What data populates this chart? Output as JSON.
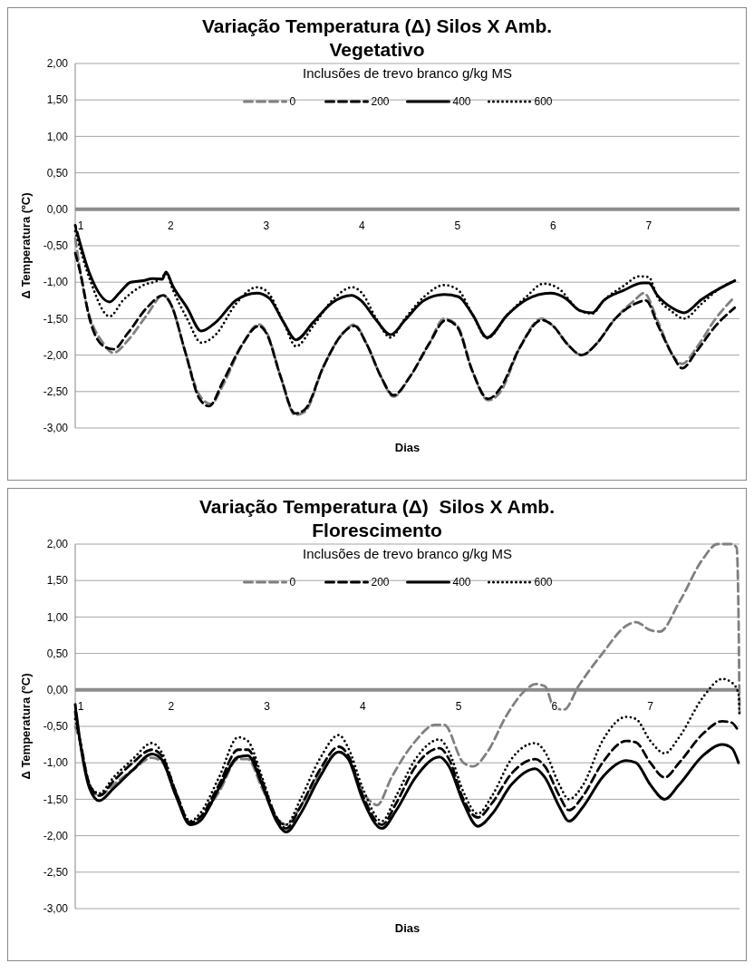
{
  "chart_data": [
    {
      "type": "line",
      "title": "Variação Temperatura (Δ) Silos X Amb.",
      "subtitle": "Vegetativo",
      "xlabel": "Dias",
      "ylabel": "Δ Temperatura (ºC)",
      "legend_title": "Inclusões de trevo branco g/kg MS",
      "legend": "top",
      "grid": "y",
      "xlim": [
        1,
        7.95
      ],
      "xticks": [
        1,
        2,
        3,
        4,
        5,
        6,
        7
      ],
      "ylim": [
        -3,
        2
      ],
      "yticks": [
        {
          "value": 2,
          "label": "2,00"
        },
        {
          "value": 1.5,
          "label": "1,50"
        },
        {
          "value": 1,
          "label": "1,00"
        },
        {
          "value": 0.5,
          "label": "0,50"
        },
        {
          "value": 0,
          "label": "0,00"
        },
        {
          "value": -0.5,
          "label": "-0,50"
        },
        {
          "value": -1,
          "label": "-1,00"
        },
        {
          "value": -1.5,
          "label": "-1,50"
        },
        {
          "value": -2,
          "label": "-2,00"
        },
        {
          "value": -2.5,
          "label": "-2,50"
        },
        {
          "value": -3,
          "label": "-3,00"
        }
      ],
      "series": [
        {
          "name": "0",
          "color": "#808080",
          "line_style": "dashed",
          "x": [
            1.0,
            1.1,
            1.3,
            1.4,
            1.55,
            1.75,
            1.92,
            2.0,
            2.15,
            2.3,
            2.42,
            2.55,
            2.75,
            2.92,
            3.0,
            3.15,
            3.3,
            3.4,
            3.6,
            3.8,
            3.92,
            4.05,
            4.2,
            4.33,
            4.5,
            4.7,
            4.86,
            5.0,
            5.15,
            5.32,
            5.45,
            5.65,
            5.88,
            6.0,
            6.15,
            6.3,
            6.45,
            6.65,
            6.85,
            6.95,
            7.1,
            7.25,
            7.35,
            7.5,
            7.7,
            7.9
          ],
          "values": [
            -0.4,
            -1.2,
            -1.85,
            -1.97,
            -1.8,
            -1.45,
            -1.18,
            -1.3,
            -1.95,
            -2.55,
            -2.67,
            -2.4,
            -1.85,
            -1.58,
            -1.68,
            -2.3,
            -2.82,
            -2.78,
            -2.15,
            -1.7,
            -1.58,
            -1.85,
            -2.3,
            -2.57,
            -2.3,
            -1.85,
            -1.5,
            -1.6,
            -2.2,
            -2.62,
            -2.5,
            -1.9,
            -1.5,
            -1.6,
            -1.85,
            -2.0,
            -1.85,
            -1.5,
            -1.25,
            -1.15,
            -1.55,
            -2.0,
            -2.12,
            -1.9,
            -1.5,
            -1.2
          ]
        },
        {
          "name": "200",
          "color": "#000000",
          "line_style": "dashed",
          "x": [
            1.0,
            1.05,
            1.15,
            1.3,
            1.4,
            1.55,
            1.75,
            1.92,
            2.0,
            2.15,
            2.3,
            2.4,
            2.55,
            2.75,
            2.92,
            3.0,
            3.15,
            3.3,
            3.4,
            3.6,
            3.8,
            3.92,
            4.05,
            4.2,
            4.33,
            4.5,
            4.7,
            4.88,
            5.0,
            5.15,
            5.32,
            5.45,
            5.65,
            5.88,
            6.0,
            6.15,
            6.3,
            6.45,
            6.65,
            6.85,
            6.97,
            7.1,
            7.25,
            7.35,
            7.5,
            7.7,
            7.9
          ],
          "values": [
            -0.6,
            -0.85,
            -1.5,
            -1.88,
            -1.92,
            -1.7,
            -1.35,
            -1.18,
            -1.3,
            -1.95,
            -2.6,
            -2.7,
            -2.35,
            -1.85,
            -1.6,
            -1.7,
            -2.3,
            -2.8,
            -2.75,
            -2.15,
            -1.7,
            -1.6,
            -1.85,
            -2.3,
            -2.55,
            -2.3,
            -1.85,
            -1.52,
            -1.62,
            -2.2,
            -2.6,
            -2.45,
            -1.9,
            -1.52,
            -1.6,
            -1.85,
            -2.0,
            -1.85,
            -1.5,
            -1.3,
            -1.25,
            -1.6,
            -2.0,
            -2.18,
            -1.95,
            -1.6,
            -1.35
          ]
        },
        {
          "name": "400",
          "color": "#000000",
          "line_style": "solid",
          "x": [
            1.0,
            1.15,
            1.36,
            1.46,
            1.58,
            1.71,
            1.81,
            1.91,
            1.95,
            2.02,
            2.17,
            2.32,
            2.47,
            2.68,
            2.9,
            3.03,
            3.18,
            3.31,
            3.49,
            3.69,
            3.89,
            3.99,
            4.15,
            4.3,
            4.45,
            4.65,
            4.86,
            5.01,
            5.16,
            5.31,
            5.52,
            5.72,
            5.97,
            6.13,
            6.28,
            6.41,
            6.53,
            6.74,
            6.94,
            7.0,
            7.09,
            7.24,
            7.37,
            7.55,
            7.75,
            7.9
          ],
          "values": [
            -0.22,
            -0.88,
            -1.27,
            -1.15,
            -1.0,
            -0.98,
            -0.95,
            -0.96,
            -0.86,
            -1.05,
            -1.35,
            -1.67,
            -1.55,
            -1.25,
            -1.15,
            -1.22,
            -1.55,
            -1.79,
            -1.55,
            -1.28,
            -1.18,
            -1.25,
            -1.52,
            -1.72,
            -1.52,
            -1.25,
            -1.17,
            -1.2,
            -1.45,
            -1.76,
            -1.45,
            -1.24,
            -1.15,
            -1.22,
            -1.39,
            -1.42,
            -1.25,
            -1.11,
            -1.01,
            -1.01,
            -1.18,
            -1.35,
            -1.42,
            -1.24,
            -1.08,
            -0.98
          ]
        },
        {
          "name": "600",
          "color": "#000000",
          "line_style": "dotted",
          "x": [
            1.0,
            1.15,
            1.36,
            1.5,
            1.7,
            1.9,
            1.95,
            2.02,
            2.17,
            2.32,
            2.47,
            2.68,
            2.9,
            3.0,
            3.18,
            3.31,
            3.49,
            3.69,
            3.9,
            4.0,
            4.15,
            4.3,
            4.45,
            4.65,
            4.86,
            5.0,
            5.16,
            5.31,
            5.52,
            5.72,
            5.9,
            6.05,
            6.28,
            6.41,
            6.53,
            6.74,
            6.9,
            7.0,
            7.09,
            7.24,
            7.37,
            7.55,
            7.75,
            7.9
          ],
          "values": [
            -0.3,
            -0.95,
            -1.47,
            -1.25,
            -1.05,
            -0.95,
            -0.88,
            -1.1,
            -1.5,
            -1.83,
            -1.72,
            -1.3,
            -1.07,
            -1.12,
            -1.55,
            -1.88,
            -1.6,
            -1.25,
            -1.07,
            -1.15,
            -1.5,
            -1.76,
            -1.5,
            -1.2,
            -1.04,
            -1.1,
            -1.45,
            -1.77,
            -1.45,
            -1.2,
            -1.02,
            -1.08,
            -1.39,
            -1.43,
            -1.25,
            -1.05,
            -0.92,
            -0.93,
            -1.2,
            -1.4,
            -1.5,
            -1.3,
            -1.08,
            -0.98
          ]
        }
      ]
    },
    {
      "type": "line",
      "title": "Variação Temperatura (Δ)  Silos X Amb.",
      "subtitle": "Florescimento",
      "xlabel": "Dias",
      "ylabel": "Δ Temperatura (ºC)",
      "legend_title": "Inclusões de trevo branco g/kg MS",
      "legend": "top",
      "grid": "y",
      "xlim": [
        1,
        7.93
      ],
      "xticks": [
        1,
        2,
        3,
        4,
        5,
        6,
        7
      ],
      "ylim": [
        -3,
        2
      ],
      "yticks": [
        {
          "value": 2,
          "label": "2,00"
        },
        {
          "value": 1.5,
          "label": "1,50"
        },
        {
          "value": 1,
          "label": "1,00"
        },
        {
          "value": 0.5,
          "label": "0,50"
        },
        {
          "value": 0,
          "label": "0,00"
        },
        {
          "value": -0.5,
          "label": "-0,50"
        },
        {
          "value": -1,
          "label": "-1,00"
        },
        {
          "value": -1.5,
          "label": "-1,50"
        },
        {
          "value": -2,
          "label": "-2,00"
        },
        {
          "value": -2.5,
          "label": "-2,50"
        },
        {
          "value": -3,
          "label": "-3,00"
        }
      ],
      "series": [
        {
          "name": "0",
          "color": "#808080",
          "line_style": "dashed",
          "x": [
            1.0,
            1.05,
            1.15,
            1.25,
            1.4,
            1.6,
            1.8,
            1.9,
            2.05,
            2.2,
            2.3,
            2.5,
            2.7,
            2.8,
            2.95,
            3.1,
            3.2,
            3.35,
            3.55,
            3.75,
            3.85,
            4.0,
            4.1,
            4.15,
            4.3,
            4.55,
            4.75,
            4.85,
            5.05,
            5.15,
            5.3,
            5.5,
            5.7,
            5.8,
            5.9,
            6.0,
            6.1,
            6.25,
            6.5,
            6.75,
            6.85,
            7.0,
            7.1,
            7.3,
            7.55,
            7.7,
            7.85,
            7.9,
            7.92,
            7.93
          ],
          "values": [
            -0.5,
            -0.7,
            -1.3,
            -1.45,
            -1.3,
            -1.1,
            -0.93,
            -0.98,
            -1.45,
            -1.82,
            -1.75,
            -1.4,
            -0.95,
            -0.95,
            -1.35,
            -1.75,
            -1.85,
            -1.6,
            -1.15,
            -0.85,
            -0.95,
            -1.4,
            -1.55,
            -1.58,
            -1.2,
            -0.7,
            -0.48,
            -0.48,
            -1.0,
            -1.05,
            -0.85,
            -0.35,
            0.0,
            0.08,
            0.05,
            -0.25,
            -0.27,
            0.05,
            0.5,
            0.88,
            0.93,
            0.82,
            0.8,
            1.2,
            1.8,
            2.0,
            2.0,
            1.95,
            1.0,
            -0.3
          ]
        },
        {
          "name": "200",
          "color": "#000000",
          "line_style": "dashed",
          "x": [
            1.0,
            1.05,
            1.15,
            1.25,
            1.4,
            1.6,
            1.8,
            1.9,
            2.05,
            2.2,
            2.3,
            2.5,
            2.7,
            2.8,
            2.95,
            3.1,
            3.2,
            3.35,
            3.55,
            3.75,
            3.85,
            4.0,
            4.2,
            4.35,
            4.55,
            4.8,
            4.9,
            5.05,
            5.2,
            5.35,
            5.55,
            5.8,
            5.9,
            6.05,
            6.15,
            6.3,
            6.5,
            6.75,
            6.85,
            7.0,
            7.15,
            7.3,
            7.55,
            7.75,
            7.85,
            7.92
          ],
          "values": [
            -0.3,
            -0.7,
            -1.3,
            -1.45,
            -1.25,
            -1.0,
            -0.82,
            -0.9,
            -1.4,
            -1.82,
            -1.75,
            -1.3,
            -0.82,
            -0.82,
            -1.25,
            -1.75,
            -1.9,
            -1.6,
            -1.1,
            -0.78,
            -0.9,
            -1.45,
            -1.85,
            -1.55,
            -1.05,
            -0.8,
            -0.95,
            -1.5,
            -1.75,
            -1.55,
            -1.15,
            -0.95,
            -1.05,
            -1.45,
            -1.65,
            -1.45,
            -1.0,
            -0.7,
            -0.72,
            -1.0,
            -1.2,
            -1.0,
            -0.6,
            -0.43,
            -0.45,
            -0.57
          ]
        },
        {
          "name": "400",
          "color": "#000000",
          "line_style": "solid",
          "x": [
            1.0,
            1.05,
            1.15,
            1.25,
            1.4,
            1.6,
            1.8,
            1.9,
            2.05,
            2.2,
            2.3,
            2.5,
            2.7,
            2.8,
            2.95,
            3.1,
            3.2,
            3.35,
            3.55,
            3.75,
            3.85,
            4.0,
            4.2,
            4.35,
            4.55,
            4.8,
            4.9,
            5.05,
            5.2,
            5.35,
            5.55,
            5.8,
            5.9,
            6.05,
            6.15,
            6.3,
            6.5,
            6.75,
            6.85,
            7.0,
            7.15,
            7.3,
            7.55,
            7.75,
            7.85,
            7.92
          ],
          "values": [
            -0.2,
            -0.7,
            -1.35,
            -1.52,
            -1.35,
            -1.1,
            -0.88,
            -0.95,
            -1.45,
            -1.85,
            -1.8,
            -1.35,
            -0.92,
            -0.9,
            -1.3,
            -1.8,
            -1.95,
            -1.7,
            -1.2,
            -0.85,
            -0.95,
            -1.5,
            -1.9,
            -1.65,
            -1.2,
            -0.92,
            -1.05,
            -1.55,
            -1.87,
            -1.7,
            -1.3,
            -1.08,
            -1.2,
            -1.6,
            -1.8,
            -1.6,
            -1.2,
            -0.97,
            -1.0,
            -1.3,
            -1.5,
            -1.3,
            -0.9,
            -0.75,
            -0.8,
            -1.0
          ]
        },
        {
          "name": "600",
          "color": "#000000",
          "line_style": "dotted",
          "x": [
            1.0,
            1.05,
            1.15,
            1.25,
            1.4,
            1.6,
            1.8,
            1.9,
            2.05,
            2.2,
            2.3,
            2.5,
            2.7,
            2.8,
            2.95,
            3.1,
            3.2,
            3.35,
            3.55,
            3.75,
            3.85,
            4.0,
            4.2,
            4.35,
            4.55,
            4.8,
            4.9,
            5.05,
            5.2,
            5.35,
            5.55,
            5.8,
            5.9,
            6.05,
            6.15,
            6.3,
            6.5,
            6.75,
            6.85,
            7.0,
            7.15,
            7.3,
            7.55,
            7.75,
            7.85,
            7.92,
            7.93
          ],
          "values": [
            -0.4,
            -0.7,
            -1.3,
            -1.42,
            -1.2,
            -0.95,
            -0.73,
            -0.85,
            -1.4,
            -1.8,
            -1.7,
            -1.2,
            -0.65,
            -0.7,
            -1.2,
            -1.75,
            -1.85,
            -1.5,
            -0.95,
            -0.62,
            -0.8,
            -1.35,
            -1.8,
            -1.45,
            -0.95,
            -0.68,
            -0.85,
            -1.4,
            -1.7,
            -1.45,
            -0.95,
            -0.73,
            -0.85,
            -1.3,
            -1.5,
            -1.3,
            -0.7,
            -0.37,
            -0.4,
            -0.7,
            -0.87,
            -0.65,
            -0.1,
            0.15,
            0.1,
            -0.05,
            -0.35
          ]
        }
      ]
    }
  ]
}
